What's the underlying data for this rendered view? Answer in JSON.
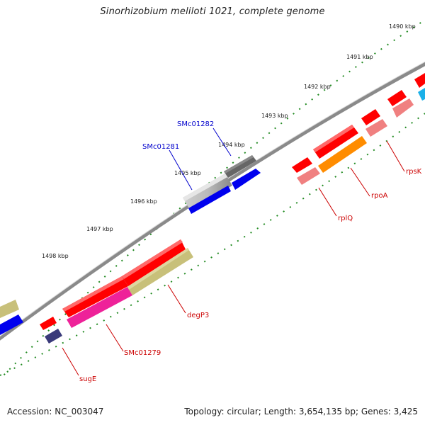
{
  "title": "Sinorhizobium meliloti 1021, complete genome",
  "footer": {
    "accession": "Accession: NC_003047",
    "info": "Topology: circular; Length: 3,654,135 bp; Genes: 3,425"
  },
  "scale_labels": [
    "1490 kbp",
    "1491 kbp",
    "1492 kbp",
    "1493 kbp",
    "1494 kbp",
    "1495 kbp",
    "1496 kbp",
    "1497 kbp",
    "1498 kbp"
  ],
  "genes": {
    "SMc01282": "SMc01282",
    "SMc01281": "SMc01281",
    "rpsK": "rpsK",
    "rpoA": "rpoA",
    "rplQ": "rplQ",
    "degP3": "degP3",
    "SMc01279": "SMc01279",
    "sugE": "sugE"
  },
  "colors": {
    "red": "#ff0000",
    "pink": "#f08080",
    "orange": "#ff8c00",
    "blue": "#0000ee",
    "navy": "#3a3a7a",
    "olive": "#c8c07a",
    "magenta": "#ee2299",
    "gray": "#a8a8a8",
    "darkgray": "#555555",
    "cyan": "#1ab0e8",
    "label_blue": "#0000cc",
    "label_red": "#cc0000",
    "ticks": "#228b22"
  }
}
